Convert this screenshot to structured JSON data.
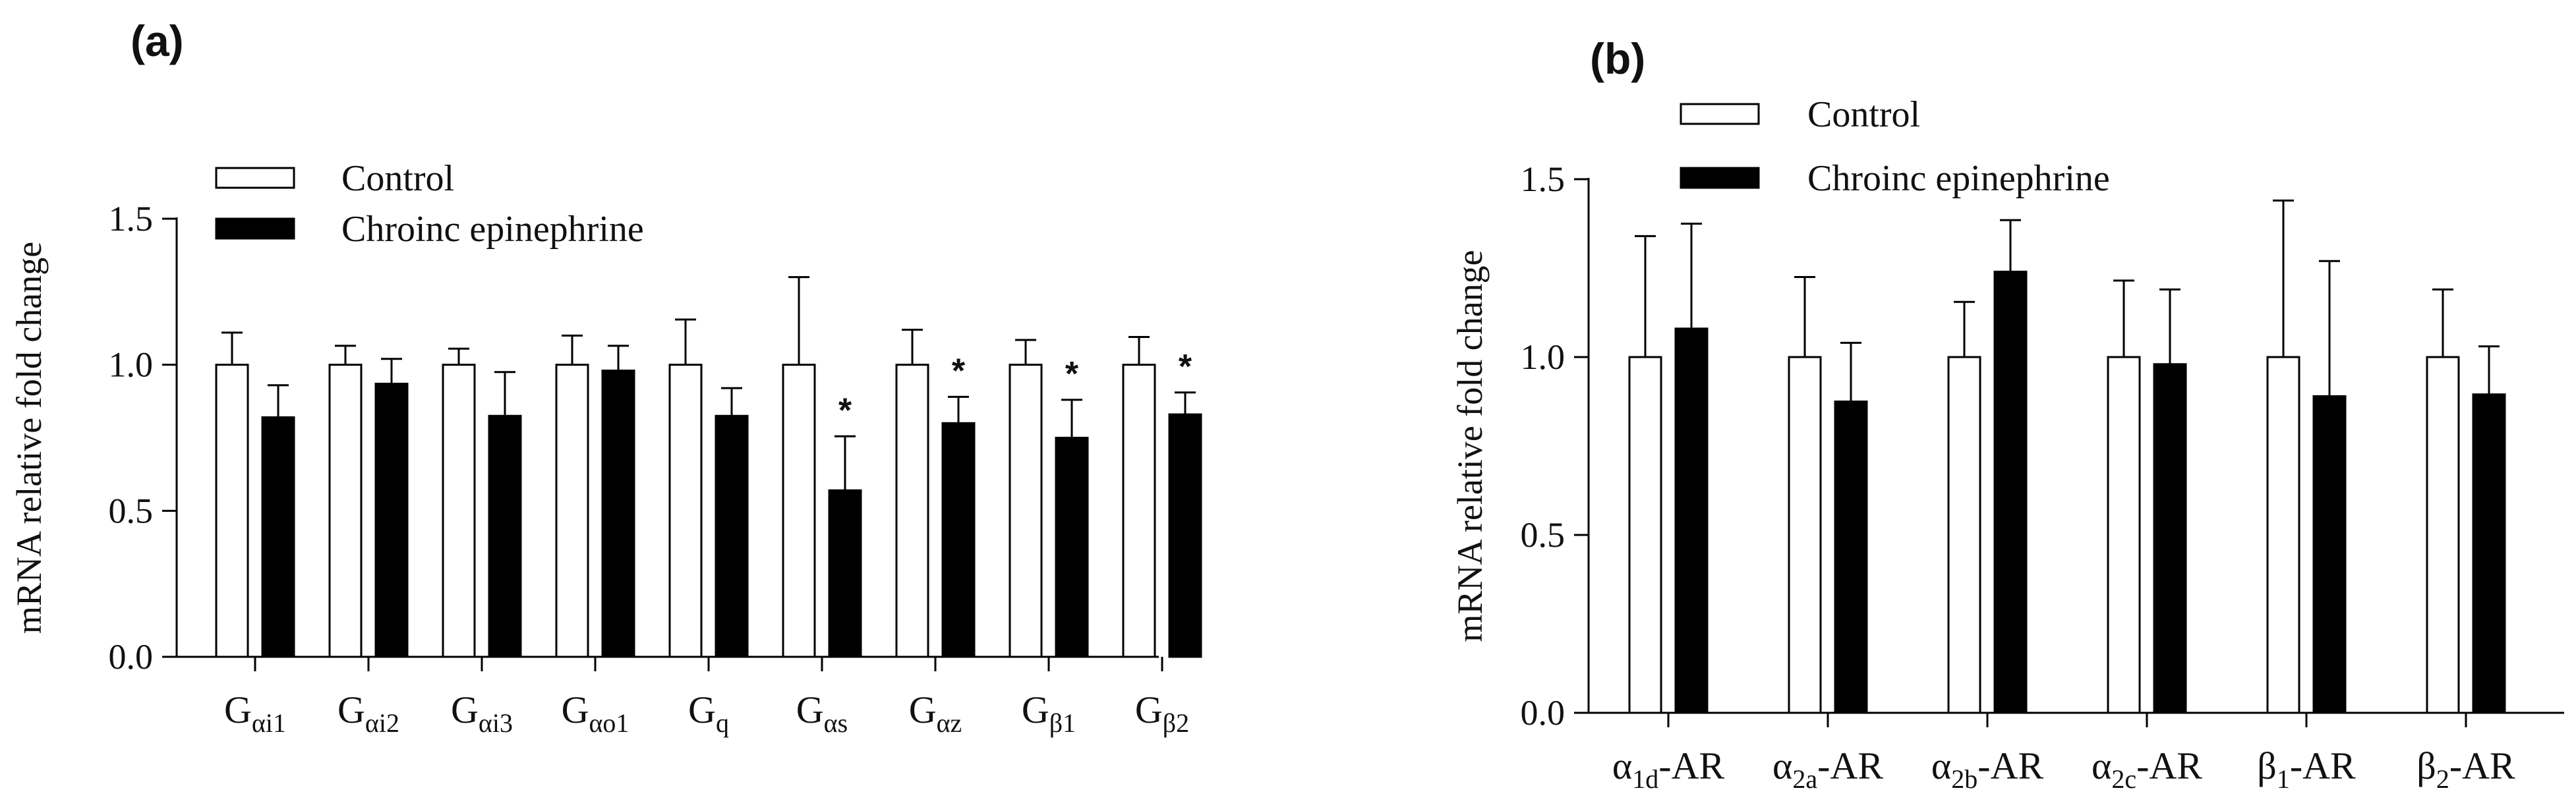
{
  "colors": {
    "control": "#ffffff",
    "treatment": "#000000",
    "stroke": "#000000"
  },
  "chart_data": [
    {
      "type": "bar",
      "panel_label": "(a)",
      "ylabel": "mRNA relative fold change",
      "xlabel": "",
      "ylim": [
        0,
        1.5
      ],
      "yticks": [
        "0.0",
        "0.5",
        "1.0",
        "1.5"
      ],
      "legend_position": "top-left",
      "categories": [
        {
          "base": "G",
          "sub": "αi1"
        },
        {
          "base": "G",
          "sub": "αi2"
        },
        {
          "base": "G",
          "sub": "αi3"
        },
        {
          "base": "G",
          "sub": "αo1"
        },
        {
          "base": "G",
          "sub": "q"
        },
        {
          "base": "G",
          "sub": "αs"
        },
        {
          "base": "G",
          "sub": "αz"
        },
        {
          "base": "G",
          "sub": "β1"
        },
        {
          "base": "G",
          "sub": "β2"
        }
      ],
      "series": [
        {
          "name": "Control",
          "values": [
            1.0,
            1.0,
            1.0,
            1.0,
            1.0,
            1.0,
            1.0,
            1.0,
            1.0
          ],
          "errors": [
            0.11,
            0.065,
            0.055,
            0.1,
            0.155,
            0.3,
            0.12,
            0.085,
            0.095
          ]
        },
        {
          "name": "Chroinc epinephrine",
          "values": [
            0.82,
            0.935,
            0.825,
            0.98,
            0.825,
            0.57,
            0.8,
            0.75,
            0.83
          ],
          "errors": [
            0.11,
            0.085,
            0.15,
            0.085,
            0.095,
            0.185,
            0.09,
            0.13,
            0.075
          ]
        }
      ],
      "significance": [
        null,
        null,
        null,
        null,
        null,
        "*",
        "*",
        "*",
        "*"
      ]
    },
    {
      "type": "bar",
      "panel_label": "(b)",
      "ylabel": "mRNA relative fold change",
      "xlabel": "",
      "ylim": [
        0,
        1.5
      ],
      "yticks": [
        "0.0",
        "0.5",
        "1.0",
        "1.5"
      ],
      "legend_position": "top-left",
      "categories": [
        {
          "base": "α",
          "sub": "1d",
          "suffix": "-AR"
        },
        {
          "base": "α",
          "sub": "2a",
          "suffix": "-AR"
        },
        {
          "base": "α",
          "sub": "2b",
          "suffix": "-AR"
        },
        {
          "base": "α",
          "sub": "2c",
          "suffix": "-AR"
        },
        {
          "base": "β",
          "sub": "1",
          "suffix": "-AR"
        },
        {
          "base": "β",
          "sub": "2",
          "suffix": "-AR"
        }
      ],
      "series": [
        {
          "name": "Control",
          "values": [
            1.0,
            1.0,
            1.0,
            1.0,
            1.0,
            1.0
          ],
          "errors": [
            0.34,
            0.225,
            0.155,
            0.215,
            0.44,
            0.19
          ]
        },
        {
          "name": "Chroinc epinephrine",
          "values": [
            1.08,
            0.875,
            1.24,
            0.98,
            0.89,
            0.895
          ],
          "errors": [
            0.295,
            0.165,
            0.145,
            0.21,
            0.38,
            0.135
          ]
        }
      ],
      "significance": [
        null,
        null,
        null,
        null,
        null,
        null
      ]
    }
  ]
}
